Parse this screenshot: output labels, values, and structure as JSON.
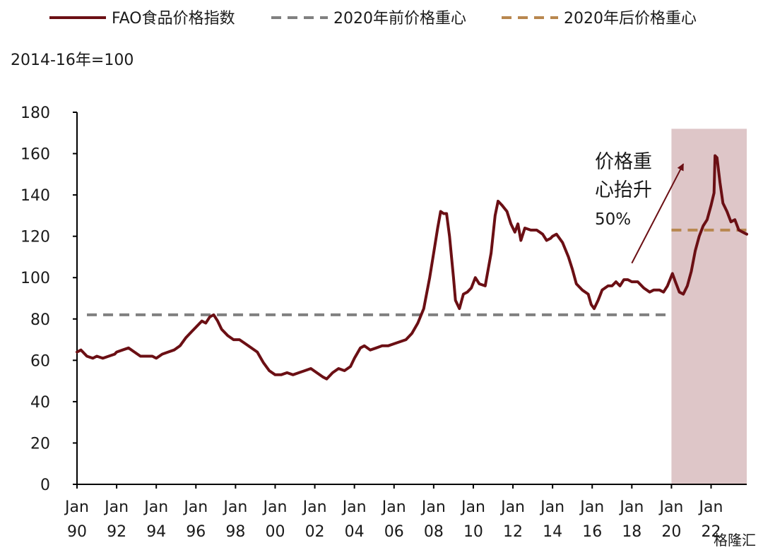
{
  "chart_data": {
    "type": "line",
    "unit_label": "2014-16年=100",
    "legend": [
      {
        "name": "FAO食品价格指数",
        "color": "#6b0f14",
        "style": "solid"
      },
      {
        "name": "2020年前价格重心",
        "color": "#808080",
        "style": "dashed"
      },
      {
        "name": "2020年后价格重心",
        "color": "#b8874f",
        "style": "dashed"
      }
    ],
    "legend_placement": "top",
    "ylim": [
      0,
      180
    ],
    "yticks": [
      0,
      20,
      40,
      60,
      80,
      100,
      120,
      140,
      160,
      180
    ],
    "xlim": [
      1990.0,
      2023.8
    ],
    "xticks": [
      {
        "year": 1990,
        "label1": "Jan",
        "label2": "90"
      },
      {
        "year": 1992,
        "label1": "Jan",
        "label2": "92"
      },
      {
        "year": 1994,
        "label1": "Jan",
        "label2": "94"
      },
      {
        "year": 1996,
        "label1": "Jan",
        "label2": "96"
      },
      {
        "year": 1998,
        "label1": "Jan",
        "label2": "98"
      },
      {
        "year": 2000,
        "label1": "Jan",
        "label2": "00"
      },
      {
        "year": 2002,
        "label1": "Jan",
        "label2": "02"
      },
      {
        "year": 2004,
        "label1": "Jan",
        "label2": "04"
      },
      {
        "year": 2006,
        "label1": "Jan",
        "label2": "06"
      },
      {
        "year": 2008,
        "label1": "Jan",
        "label2": "08"
      },
      {
        "year": 2010,
        "label1": "Jan",
        "label2": "10"
      },
      {
        "year": 2012,
        "label1": "Jan",
        "label2": "12"
      },
      {
        "year": 2014,
        "label1": "Jan",
        "label2": "14"
      },
      {
        "year": 2016,
        "label1": "Jan",
        "label2": "16"
      },
      {
        "year": 2018,
        "label1": "Jan",
        "label2": "18"
      },
      {
        "year": 2020,
        "label1": "Jan",
        "label2": "20"
      },
      {
        "year": 2022,
        "label1": "Jan",
        "label2": "22"
      }
    ],
    "grid": false,
    "series": [
      {
        "name": "FAO食品价格指数",
        "color": "#6b0f14",
        "points": [
          [
            1990.0,
            64
          ],
          [
            1990.2,
            65
          ],
          [
            1990.5,
            62
          ],
          [
            1990.8,
            61
          ],
          [
            1991.0,
            62
          ],
          [
            1991.3,
            61
          ],
          [
            1991.6,
            62
          ],
          [
            1991.9,
            63
          ],
          [
            1992.0,
            64
          ],
          [
            1992.3,
            65
          ],
          [
            1992.6,
            66
          ],
          [
            1992.9,
            64
          ],
          [
            1993.2,
            62
          ],
          [
            1993.5,
            62
          ],
          [
            1993.8,
            62
          ],
          [
            1994.0,
            61
          ],
          [
            1994.3,
            63
          ],
          [
            1994.6,
            64
          ],
          [
            1994.9,
            65
          ],
          [
            1995.2,
            67
          ],
          [
            1995.5,
            71
          ],
          [
            1995.8,
            74
          ],
          [
            1996.0,
            76
          ],
          [
            1996.3,
            79
          ],
          [
            1996.5,
            78
          ],
          [
            1996.7,
            81
          ],
          [
            1996.9,
            82
          ],
          [
            1997.1,
            79
          ],
          [
            1997.3,
            75
          ],
          [
            1997.6,
            72
          ],
          [
            1997.9,
            70
          ],
          [
            1998.2,
            70
          ],
          [
            1998.5,
            68
          ],
          [
            1998.8,
            66
          ],
          [
            1999.1,
            64
          ],
          [
            1999.4,
            59
          ],
          [
            1999.7,
            55
          ],
          [
            2000.0,
            53
          ],
          [
            2000.3,
            53
          ],
          [
            2000.6,
            54
          ],
          [
            2000.9,
            53
          ],
          [
            2001.2,
            54
          ],
          [
            2001.5,
            55
          ],
          [
            2001.8,
            56
          ],
          [
            2002.1,
            54
          ],
          [
            2002.4,
            52
          ],
          [
            2002.6,
            51
          ],
          [
            2002.9,
            54
          ],
          [
            2003.2,
            56
          ],
          [
            2003.5,
            55
          ],
          [
            2003.8,
            57
          ],
          [
            2004.0,
            61
          ],
          [
            2004.3,
            66
          ],
          [
            2004.5,
            67
          ],
          [
            2004.8,
            65
          ],
          [
            2005.1,
            66
          ],
          [
            2005.4,
            67
          ],
          [
            2005.7,
            67
          ],
          [
            2006.0,
            68
          ],
          [
            2006.3,
            69
          ],
          [
            2006.6,
            70
          ],
          [
            2006.9,
            73
          ],
          [
            2007.2,
            78
          ],
          [
            2007.5,
            85
          ],
          [
            2007.8,
            100
          ],
          [
            2008.0,
            112
          ],
          [
            2008.2,
            124
          ],
          [
            2008.35,
            132
          ],
          [
            2008.5,
            131
          ],
          [
            2008.65,
            131
          ],
          [
            2008.8,
            120
          ],
          [
            2009.0,
            100
          ],
          [
            2009.1,
            89
          ],
          [
            2009.3,
            85
          ],
          [
            2009.5,
            92
          ],
          [
            2009.7,
            93
          ],
          [
            2009.9,
            95
          ],
          [
            2010.1,
            100
          ],
          [
            2010.3,
            97
          ],
          [
            2010.6,
            96
          ],
          [
            2010.9,
            112
          ],
          [
            2011.1,
            130
          ],
          [
            2011.25,
            137
          ],
          [
            2011.45,
            135
          ],
          [
            2011.7,
            132
          ],
          [
            2011.9,
            126
          ],
          [
            2012.1,
            122
          ],
          [
            2012.25,
            126
          ],
          [
            2012.4,
            118
          ],
          [
            2012.6,
            124
          ],
          [
            2012.9,
            123
          ],
          [
            2013.2,
            123
          ],
          [
            2013.5,
            121
          ],
          [
            2013.7,
            118
          ],
          [
            2013.9,
            119
          ],
          [
            2014.0,
            120
          ],
          [
            2014.2,
            121
          ],
          [
            2014.5,
            117
          ],
          [
            2014.8,
            110
          ],
          [
            2015.0,
            104
          ],
          [
            2015.2,
            97
          ],
          [
            2015.5,
            94
          ],
          [
            2015.8,
            92
          ],
          [
            2015.95,
            87
          ],
          [
            2016.1,
            85
          ],
          [
            2016.3,
            89
          ],
          [
            2016.5,
            94
          ],
          [
            2016.8,
            96
          ],
          [
            2017.0,
            96
          ],
          [
            2017.2,
            98
          ],
          [
            2017.4,
            96
          ],
          [
            2017.6,
            99
          ],
          [
            2017.8,
            99
          ],
          [
            2018.0,
            98
          ],
          [
            2018.3,
            98
          ],
          [
            2018.6,
            95
          ],
          [
            2018.9,
            93
          ],
          [
            2019.1,
            94
          ],
          [
            2019.4,
            94
          ],
          [
            2019.6,
            93
          ],
          [
            2019.8,
            96
          ],
          [
            2020.05,
            102
          ],
          [
            2020.2,
            98
          ],
          [
            2020.4,
            93
          ],
          [
            2020.6,
            92
          ],
          [
            2020.8,
            96
          ],
          [
            2021.0,
            103
          ],
          [
            2021.2,
            113
          ],
          [
            2021.4,
            120
          ],
          [
            2021.6,
            125
          ],
          [
            2021.8,
            128
          ],
          [
            2022.0,
            135
          ],
          [
            2022.15,
            141
          ],
          [
            2022.2,
            159
          ],
          [
            2022.3,
            158
          ],
          [
            2022.45,
            146
          ],
          [
            2022.6,
            136
          ],
          [
            2022.8,
            132
          ],
          [
            2023.0,
            127
          ],
          [
            2023.2,
            128
          ],
          [
            2023.4,
            123
          ],
          [
            2023.6,
            122
          ],
          [
            2023.8,
            121
          ]
        ]
      }
    ],
    "reference_lines": [
      {
        "name": "2020年前价格重心",
        "y": 82,
        "x_from": 1990.5,
        "x_to": 2020.0,
        "color": "#808080"
      },
      {
        "name": "2020年后价格重心",
        "y": 123,
        "x_from": 2020.0,
        "x_to": 2023.8,
        "color": "#b8874f"
      }
    ],
    "shaded_region": {
      "x_from": 2020.0,
      "x_to": 2023.8,
      "y_top": 172,
      "color": "#dec6c8"
    },
    "annotation": {
      "lines": [
        "价格重",
        "心抬升",
        "50%"
      ],
      "arrow_from": [
        2018.0,
        107
      ],
      "arrow_to": [
        2020.6,
        155
      ],
      "arrow_color": "#6b0f14"
    }
  },
  "watermark": "格隆汇"
}
